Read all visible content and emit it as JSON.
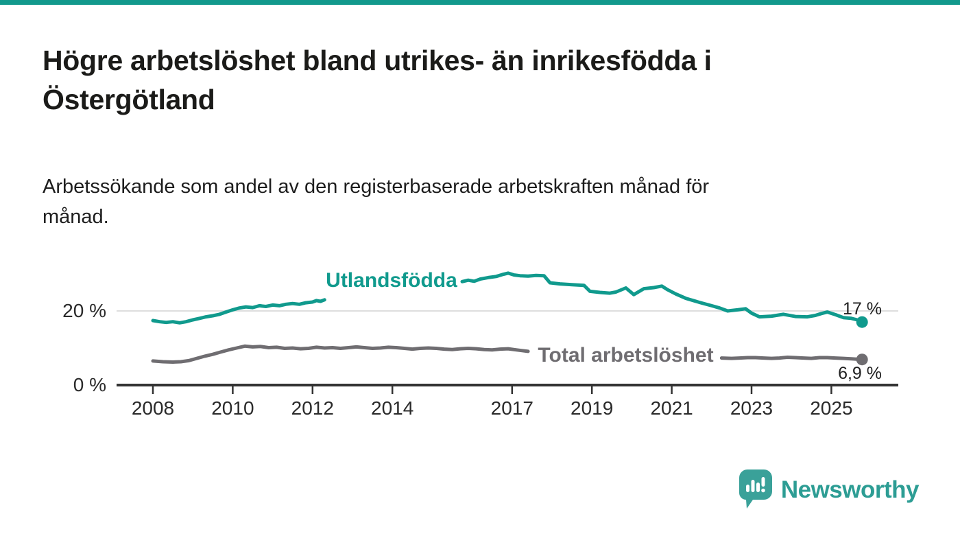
{
  "page": {
    "background": "#ffffff",
    "accent_color": "#12998c"
  },
  "header": {
    "title_line1": "Högre arbetslöshet bland utrikes- än inrikesfödda i",
    "title_line2": "Östergötland",
    "subtitle_line1": "Arbetssökande som andel av den registerbaserade arbetskraften månad för",
    "subtitle_line2": "månad."
  },
  "chart_data": {
    "type": "line",
    "title": "Högre arbetslöshet bland utrikes- än inrikesfödda i Östergötland",
    "xlabel": "",
    "ylabel": "Arbetssökande som andel av den registerbaserade arbetskraften (%)",
    "x_range": [
      2008,
      2025.8
    ],
    "ylim": [
      0,
      32
    ],
    "grid": "single horizontal gridline at 20 %",
    "legend_position": "inline labels on lines",
    "y_gridlines": [
      20
    ],
    "y_ticks": [
      {
        "value": 20,
        "label": "20 %"
      },
      {
        "value": 0,
        "label": "0 %"
      }
    ],
    "x_ticks": [
      {
        "year": 2008,
        "label": "2008"
      },
      {
        "year": 2010,
        "label": "2010"
      },
      {
        "year": 2012,
        "label": "2012"
      },
      {
        "year": 2014,
        "label": "2014"
      },
      {
        "year": 2017,
        "label": "2017"
      },
      {
        "year": 2019,
        "label": "2019"
      },
      {
        "year": 2021,
        "label": "2021"
      },
      {
        "year": 2023,
        "label": "2023"
      },
      {
        "year": 2025,
        "label": "2025"
      }
    ],
    "series": [
      {
        "name": "Utlandsfödda",
        "color": "#109a8d",
        "end_label": "17 %",
        "end_value": 17.0,
        "label_gap_years": [
          2012.33,
          2015.72
        ],
        "points": [
          [
            2008.0,
            17.4
          ],
          [
            2008.17,
            17.1
          ],
          [
            2008.33,
            16.9
          ],
          [
            2008.5,
            17.1
          ],
          [
            2008.67,
            16.8
          ],
          [
            2008.83,
            17.1
          ],
          [
            2009.0,
            17.6
          ],
          [
            2009.17,
            18.0
          ],
          [
            2009.33,
            18.4
          ],
          [
            2009.5,
            18.7
          ],
          [
            2009.67,
            19.1
          ],
          [
            2009.83,
            19.7
          ],
          [
            2010.0,
            20.3
          ],
          [
            2010.17,
            20.8
          ],
          [
            2010.33,
            21.1
          ],
          [
            2010.5,
            20.9
          ],
          [
            2010.67,
            21.4
          ],
          [
            2010.83,
            21.2
          ],
          [
            2011.0,
            21.6
          ],
          [
            2011.17,
            21.4
          ],
          [
            2011.33,
            21.8
          ],
          [
            2011.5,
            22.0
          ],
          [
            2011.67,
            21.8
          ],
          [
            2011.83,
            22.2
          ],
          [
            2012.0,
            22.4
          ],
          [
            2012.1,
            22.8
          ],
          [
            2012.2,
            22.6
          ],
          [
            2012.3,
            23.0
          ],
          [
            2012.6,
            23.4
          ],
          [
            2013.0,
            23.9
          ],
          [
            2013.5,
            24.5
          ],
          [
            2014.0,
            25.1
          ],
          [
            2014.5,
            25.8
          ],
          [
            2015.0,
            26.6
          ],
          [
            2015.4,
            27.3
          ],
          [
            2015.75,
            27.9
          ],
          [
            2015.9,
            28.3
          ],
          [
            2016.05,
            28.0
          ],
          [
            2016.2,
            28.6
          ],
          [
            2016.4,
            29.0
          ],
          [
            2016.6,
            29.3
          ],
          [
            2016.75,
            29.8
          ],
          [
            2016.9,
            30.2
          ],
          [
            2017.05,
            29.7
          ],
          [
            2017.2,
            29.5
          ],
          [
            2017.4,
            29.4
          ],
          [
            2017.6,
            29.6
          ],
          [
            2017.8,
            29.5
          ],
          [
            2017.95,
            27.6
          ],
          [
            2018.2,
            27.3
          ],
          [
            2018.5,
            27.1
          ],
          [
            2018.8,
            26.9
          ],
          [
            2018.95,
            25.3
          ],
          [
            2019.2,
            25.0
          ],
          [
            2019.45,
            24.8
          ],
          [
            2019.6,
            25.1
          ],
          [
            2019.85,
            26.2
          ],
          [
            2020.05,
            24.4
          ],
          [
            2020.3,
            26.0
          ],
          [
            2020.55,
            26.3
          ],
          [
            2020.75,
            26.7
          ],
          [
            2020.9,
            25.7
          ],
          [
            2021.1,
            24.6
          ],
          [
            2021.35,
            23.4
          ],
          [
            2021.7,
            22.3
          ],
          [
            2022.0,
            21.4
          ],
          [
            2022.2,
            20.8
          ],
          [
            2022.4,
            20.0
          ],
          [
            2022.65,
            20.3
          ],
          [
            2022.85,
            20.6
          ],
          [
            2023.0,
            19.4
          ],
          [
            2023.2,
            18.4
          ],
          [
            2023.5,
            18.6
          ],
          [
            2023.8,
            19.1
          ],
          [
            2024.1,
            18.5
          ],
          [
            2024.4,
            18.4
          ],
          [
            2024.6,
            18.8
          ],
          [
            2024.75,
            19.3
          ],
          [
            2024.9,
            19.7
          ],
          [
            2025.1,
            19.0
          ],
          [
            2025.3,
            18.2
          ],
          [
            2025.5,
            18.0
          ],
          [
            2025.65,
            17.6
          ],
          [
            2025.77,
            17.0
          ]
        ]
      },
      {
        "name": "Total arbetslöshet",
        "color": "#6f6d71",
        "end_label": "6,9 %",
        "end_value": 6.9,
        "label_gap_years": [
          2017.45,
          2022.22
        ],
        "points": [
          [
            2008.0,
            6.5
          ],
          [
            2008.25,
            6.3
          ],
          [
            2008.5,
            6.2
          ],
          [
            2008.7,
            6.3
          ],
          [
            2008.9,
            6.6
          ],
          [
            2009.1,
            7.2
          ],
          [
            2009.3,
            7.8
          ],
          [
            2009.5,
            8.3
          ],
          [
            2009.7,
            8.9
          ],
          [
            2009.9,
            9.5
          ],
          [
            2010.1,
            10.0
          ],
          [
            2010.3,
            10.5
          ],
          [
            2010.5,
            10.3
          ],
          [
            2010.7,
            10.4
          ],
          [
            2010.9,
            10.1
          ],
          [
            2011.1,
            10.2
          ],
          [
            2011.3,
            9.9
          ],
          [
            2011.5,
            10.0
          ],
          [
            2011.7,
            9.8
          ],
          [
            2011.9,
            9.9
          ],
          [
            2012.1,
            10.2
          ],
          [
            2012.3,
            10.0
          ],
          [
            2012.5,
            10.1
          ],
          [
            2012.7,
            9.9
          ],
          [
            2012.9,
            10.1
          ],
          [
            2013.1,
            10.3
          ],
          [
            2013.3,
            10.1
          ],
          [
            2013.5,
            9.9
          ],
          [
            2013.7,
            10.0
          ],
          [
            2013.9,
            10.2
          ],
          [
            2014.1,
            10.1
          ],
          [
            2014.3,
            9.9
          ],
          [
            2014.5,
            9.7
          ],
          [
            2014.7,
            9.9
          ],
          [
            2014.9,
            10.0
          ],
          [
            2015.1,
            9.9
          ],
          [
            2015.3,
            9.7
          ],
          [
            2015.5,
            9.6
          ],
          [
            2015.7,
            9.8
          ],
          [
            2015.9,
            9.9
          ],
          [
            2016.1,
            9.8
          ],
          [
            2016.3,
            9.6
          ],
          [
            2016.5,
            9.5
          ],
          [
            2016.7,
            9.7
          ],
          [
            2016.9,
            9.8
          ],
          [
            2017.1,
            9.5
          ],
          [
            2017.25,
            9.3
          ],
          [
            2017.4,
            9.1
          ],
          [
            2017.8,
            8.8
          ],
          [
            2018.3,
            8.5
          ],
          [
            2018.8,
            8.3
          ],
          [
            2019.3,
            8.3
          ],
          [
            2019.8,
            8.6
          ],
          [
            2020.3,
            9.3
          ],
          [
            2020.8,
            9.0
          ],
          [
            2021.3,
            8.4
          ],
          [
            2021.8,
            7.8
          ],
          [
            2022.1,
            7.5
          ],
          [
            2022.25,
            7.3
          ],
          [
            2022.5,
            7.2
          ],
          [
            2022.7,
            7.3
          ],
          [
            2022.9,
            7.4
          ],
          [
            2023.1,
            7.4
          ],
          [
            2023.3,
            7.3
          ],
          [
            2023.5,
            7.2
          ],
          [
            2023.7,
            7.3
          ],
          [
            2023.9,
            7.5
          ],
          [
            2024.1,
            7.4
          ],
          [
            2024.3,
            7.3
          ],
          [
            2024.5,
            7.2
          ],
          [
            2024.7,
            7.4
          ],
          [
            2024.9,
            7.4
          ],
          [
            2025.1,
            7.3
          ],
          [
            2025.3,
            7.2
          ],
          [
            2025.5,
            7.1
          ],
          [
            2025.77,
            6.9
          ]
        ]
      }
    ]
  },
  "branding": {
    "wordmark": "Newsworthy",
    "logo_icon": "speech-bubble-bar-chart-icon",
    "wordmark_color": "#2d9d94",
    "bubble_color": "#3aa199"
  }
}
